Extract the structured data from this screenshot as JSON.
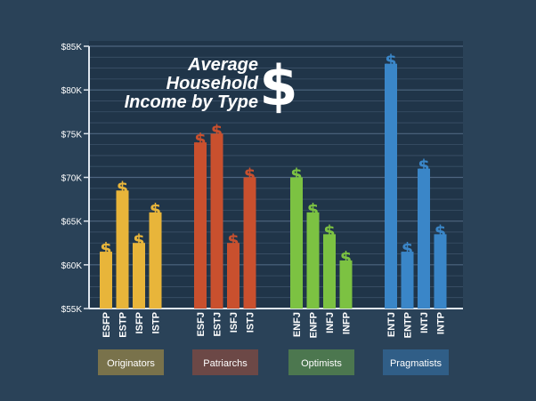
{
  "chart_data": {
    "type": "bar",
    "title_lines": [
      "Average",
      "Household",
      "Income by Type"
    ],
    "title_symbol": "$",
    "ylim": [
      55,
      85
    ],
    "y_ticks": [
      {
        "value": 55,
        "label": "$55K"
      },
      {
        "value": 60,
        "label": "$60K"
      },
      {
        "value": 65,
        "label": "$65K"
      },
      {
        "value": 70,
        "label": "$70K"
      },
      {
        "value": 75,
        "label": "$75K"
      },
      {
        "value": 80,
        "label": "$80K"
      },
      {
        "value": 85,
        "label": "$85K"
      }
    ],
    "grid": true,
    "bar_marker": "$",
    "groups": [
      {
        "name": "Originators",
        "color": "#e8b53a",
        "categories": [
          "ESFP",
          "ESTP",
          "ISFP",
          "ISTP"
        ],
        "values": [
          61.5,
          68.5,
          62.5,
          66
        ]
      },
      {
        "name": "Patriarchs",
        "color": "#c9502e",
        "categories": [
          "ESFJ",
          "ESTJ",
          "ISFJ",
          "ISTJ"
        ],
        "values": [
          74,
          75,
          62.5,
          70
        ]
      },
      {
        "name": "Optimists",
        "color": "#7cc242",
        "categories": [
          "ENFJ",
          "ENFP",
          "INFJ",
          "INFP"
        ],
        "values": [
          70,
          66,
          63.5,
          60.5
        ]
      },
      {
        "name": "Pragmatists",
        "color": "#3a86c8",
        "categories": [
          "ENTJ",
          "ENTP",
          "INTJ",
          "INTP"
        ],
        "values": [
          83,
          61.5,
          71,
          63.5
        ]
      }
    ]
  }
}
